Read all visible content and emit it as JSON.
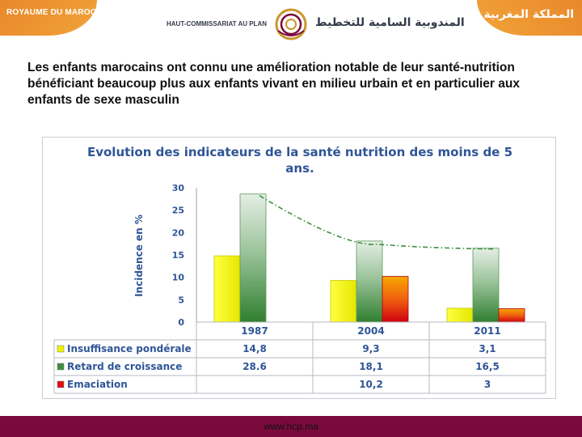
{
  "header": {
    "kingdom_fr": "ROYAUME DU MAROC",
    "kingdom_ar": "المملكة المغربية",
    "institution_fr": "HAUT-COMMISSARIAT AU PLAN",
    "institution_ar": "المندوبية السامية للتخطيط",
    "logo_icon": "hcp-logo-icon"
  },
  "headline": "Les enfants marocains ont connu une amélioration notable de leur santé-nutrition bénéficiant beaucoup plus aux enfants vivant en milieu urbain et en particulier aux enfants de sexe masculin",
  "footer": {
    "url": "www.hcp.ma"
  },
  "colors": {
    "insuffisance": "#f2f200",
    "retard": "#3f8f3f",
    "emaciation": "#e01010",
    "title": "#2f5597",
    "footer": "#7a0a3c",
    "trend": "#3f8f3f"
  },
  "chart_data": {
    "type": "bar",
    "title": "Evolution des indicateurs de la santé nutrition des moins de 5 ans.",
    "title_line1": "Evolution des indicateurs de la santé nutrition des moins de 5",
    "title_line2": "ans.",
    "ylabel": "Incidence en %",
    "ylim": [
      0,
      30
    ],
    "yticks": [
      "0",
      "5",
      "10",
      "15",
      "20",
      "25",
      "30"
    ],
    "categories": [
      "1987",
      "2004",
      "2011"
    ],
    "series": [
      {
        "name": "Insuffisance pondérale",
        "values": [
          14.8,
          9.3,
          3.1
        ],
        "labels": [
          "14,8",
          "9,3",
          "3,1"
        ]
      },
      {
        "name": "Retard de croissance",
        "values": [
          28.6,
          18.1,
          16.5
        ],
        "labels": [
          "28.6",
          "18,1",
          "16,5"
        ]
      },
      {
        "name": "Emaciation",
        "values": [
          null,
          10.2,
          3
        ],
        "labels": [
          "",
          "10,2",
          "3"
        ]
      }
    ],
    "trendline": {
      "series": "Retard de croissance",
      "style": "dash-dot"
    },
    "legend": "data-table-below",
    "grid": false
  }
}
